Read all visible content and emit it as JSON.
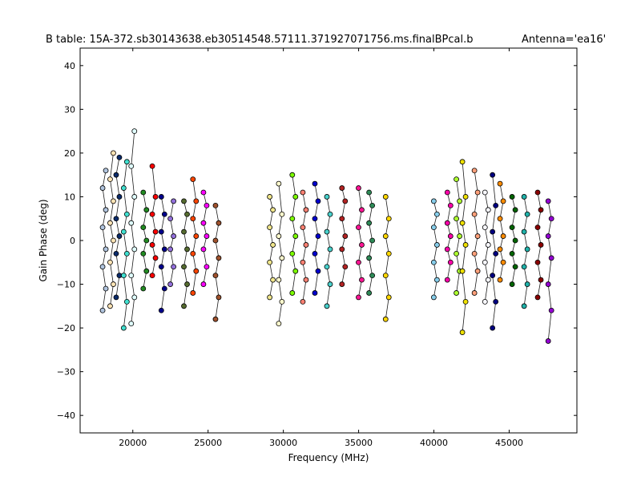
{
  "chart_data": {
    "type": "scatter",
    "title": "B table: 15A-372.sb30143638.eb30514548.57111.371927071756.ms.finalBPcal.b",
    "antenna": "Antenna='ea16'",
    "xlabel": "Frequency (MHz)",
    "ylabel": "Gain Phase (deg)",
    "xlim": [
      16500,
      49500
    ],
    "ylim": [
      -44,
      44
    ],
    "x_ticks": [
      20000,
      25000,
      30000,
      35000,
      40000,
      45000
    ],
    "y_ticks": [
      -40,
      -30,
      -20,
      -10,
      0,
      10,
      20,
      30,
      40
    ],
    "x_tick_labels": [
      "20000",
      "25000",
      "30000",
      "35000",
      "40000",
      "45000"
    ],
    "y_tick_labels": [
      "−40",
      "−30",
      "−20",
      "−10",
      "0",
      "10",
      "20",
      "30",
      "40"
    ],
    "grid": false,
    "legend": "none",
    "series": [
      {
        "x": 18100,
        "values": [
          -16,
          -11,
          -6,
          -2,
          3,
          7,
          12,
          16
        ],
        "color": "#b0c4de"
      },
      {
        "x": 18600,
        "values": [
          -15,
          -10,
          -5,
          0,
          4,
          9,
          14,
          20
        ],
        "color": "#ffe4b5"
      },
      {
        "x": 19000,
        "values": [
          -13,
          -8,
          -3,
          1,
          5,
          10,
          15,
          19
        ],
        "color": "#0a2a6a"
      },
      {
        "x": 19500,
        "values": [
          -20,
          -14,
          -8,
          -3,
          2,
          6,
          12,
          18
        ],
        "color": "#40e0d0"
      },
      {
        "x": 20000,
        "values": [
          -19,
          -13,
          -8,
          -2,
          4,
          10,
          17,
          25
        ],
        "color": "#e0ffff"
      },
      {
        "x": 20800,
        "values": [
          -11,
          -7,
          -3,
          0,
          3,
          7,
          11
        ],
        "color": "#228b22"
      },
      {
        "x": 21400,
        "values": [
          -8,
          -4,
          -1,
          2,
          6,
          10,
          17
        ],
        "color": "#ff0000"
      },
      {
        "x": 22000,
        "values": [
          -16,
          -11,
          -6,
          -2,
          2,
          6,
          10
        ],
        "color": "#00008b"
      },
      {
        "x": 22600,
        "values": [
          -10,
          -6,
          -2,
          1,
          5,
          9
        ],
        "color": "#9370db"
      },
      {
        "x": 23500,
        "values": [
          -15,
          -10,
          -6,
          -2,
          2,
          6,
          9
        ],
        "color": "#556b2f"
      },
      {
        "x": 24100,
        "values": [
          -12,
          -7,
          -3,
          1,
          5,
          9,
          14
        ],
        "color": "#ff4500"
      },
      {
        "x": 24800,
        "values": [
          -10,
          -6,
          -2,
          1,
          4,
          8,
          11
        ],
        "color": "#ff00ff"
      },
      {
        "x": 25600,
        "values": [
          -18,
          -13,
          -8,
          -4,
          0,
          4,
          8
        ],
        "color": "#a0522d"
      },
      {
        "x": 29200,
        "values": [
          -13,
          -9,
          -5,
          -1,
          3,
          7,
          10
        ],
        "color": "#f0e68c"
      },
      {
        "x": 29800,
        "values": [
          -19,
          -14,
          -9,
          -4,
          1,
          6,
          13
        ],
        "color": "#fffacd"
      },
      {
        "x": 30700,
        "values": [
          -12,
          -7,
          -3,
          1,
          5,
          10,
          15
        ],
        "color": "#7cfc00"
      },
      {
        "x": 31400,
        "values": [
          -14,
          -9,
          -5,
          -1,
          3,
          7,
          11
        ],
        "color": "#fa8072"
      },
      {
        "x": 32200,
        "values": [
          -12,
          -7,
          -3,
          1,
          5,
          9,
          13
        ],
        "color": "#0000cd"
      },
      {
        "x": 33000,
        "values": [
          -15,
          -10,
          -6,
          -2,
          2,
          6,
          10
        ],
        "color": "#48d1cc"
      },
      {
        "x": 34000,
        "values": [
          -10,
          -6,
          -2,
          1,
          5,
          9,
          12
        ],
        "color": "#b22222"
      },
      {
        "x": 35100,
        "values": [
          -13,
          -9,
          -5,
          -1,
          3,
          7,
          12
        ],
        "color": "#ff1493"
      },
      {
        "x": 35800,
        "values": [
          -12,
          -8,
          -4,
          0,
          4,
          8,
          11
        ],
        "color": "#2e8b57"
      },
      {
        "x": 36900,
        "values": [
          -18,
          -13,
          -8,
          -3,
          1,
          5,
          10
        ],
        "color": "#ffd700"
      },
      {
        "x": 40100,
        "values": [
          -13,
          -9,
          -5,
          -1,
          3,
          6,
          9
        ],
        "color": "#87ceeb"
      },
      {
        "x": 41000,
        "values": [
          -9,
          -5,
          -2,
          1,
          4,
          8,
          11
        ],
        "color": "#ff00aa"
      },
      {
        "x": 41600,
        "values": [
          -12,
          -7,
          -3,
          1,
          5,
          9,
          14
        ],
        "color": "#adff2f"
      },
      {
        "x": 42000,
        "values": [
          -21,
          -14,
          -7,
          -1,
          4,
          10,
          18
        ],
        "color": "#eee000"
      },
      {
        "x": 42800,
        "values": [
          -12,
          -7,
          -3,
          1,
          6,
          11,
          16
        ],
        "color": "#ffa07a"
      },
      {
        "x": 43500,
        "values": [
          -14,
          -9,
          -5,
          -1,
          3,
          7,
          11
        ],
        "color": "#f8f8ff"
      },
      {
        "x": 44000,
        "values": [
          -20,
          -14,
          -8,
          -3,
          2,
          8,
          15
        ],
        "color": "#000080"
      },
      {
        "x": 44500,
        "values": [
          -9,
          -5,
          -2,
          1,
          5,
          9,
          13
        ],
        "color": "#ff8c00"
      },
      {
        "x": 45300,
        "values": [
          -10,
          -6,
          -3,
          0,
          3,
          7,
          10
        ],
        "color": "#006400"
      },
      {
        "x": 46100,
        "values": [
          -15,
          -10,
          -6,
          -2,
          2,
          6,
          10
        ],
        "color": "#20b2aa"
      },
      {
        "x": 47000,
        "values": [
          -13,
          -9,
          -5,
          -1,
          3,
          7,
          11
        ],
        "color": "#8b0000"
      },
      {
        "x": 47700,
        "values": [
          -23,
          -16,
          -10,
          -4,
          1,
          5,
          9
        ],
        "color": "#9400d3"
      }
    ]
  }
}
